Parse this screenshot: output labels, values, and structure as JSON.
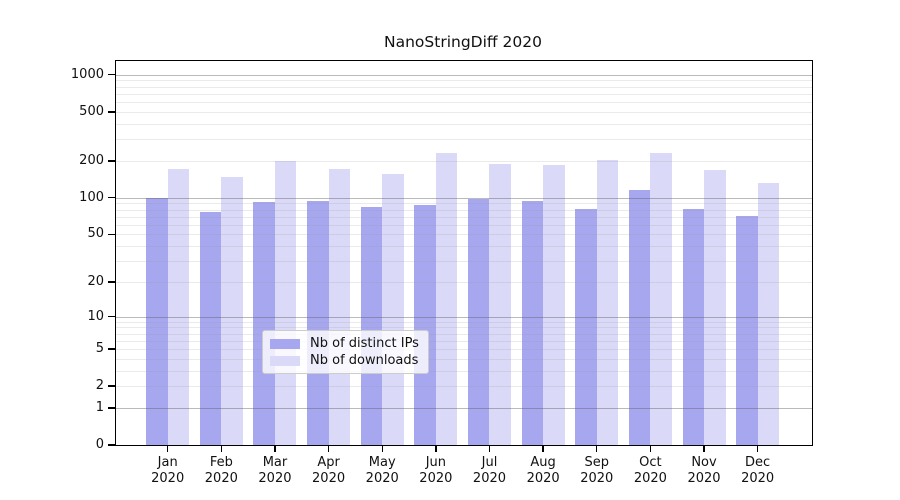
{
  "figure": {
    "title": "NanoStringDiff 2020",
    "background": "#ffffff"
  },
  "chart_data": {
    "type": "bar",
    "title": "NanoStringDiff 2020",
    "categories": [
      "Jan",
      "Feb",
      "Mar",
      "Apr",
      "May",
      "Jun",
      "Jul",
      "Aug",
      "Sep",
      "Oct",
      "Nov",
      "Dec"
    ],
    "year": "2020",
    "series": [
      {
        "name": "Nb of distinct IPs",
        "color": "#a7a7f0",
        "values": [
          99,
          77,
          93,
          94,
          84,
          87,
          98,
          94,
          81,
          116,
          81,
          71
        ]
      },
      {
        "name": "Nb of downloads",
        "color": "#dadaf8",
        "values": [
          172,
          148,
          201,
          172,
          156,
          232,
          187,
          185,
          202,
          230,
          170,
          131
        ]
      }
    ],
    "xlabel": "",
    "ylabel": "",
    "y_ticks": [
      0,
      1,
      2,
      5,
      10,
      20,
      50,
      100,
      200,
      500,
      1000
    ],
    "y_scale": "log10(1+x)",
    "y_max": 1294,
    "ylim": [
      0,
      1294
    ],
    "grid": "on",
    "legend_position": "bottom-center"
  },
  "colors": {
    "bar_distinct_ips": "#a7a7f0",
    "bar_downloads": "#dadaf8",
    "grid_major": "#b3b3b3",
    "grid_minor": "#e6e6e6",
    "axis": "#000000",
    "text": "#111111",
    "legend_border": "#cccccc"
  }
}
